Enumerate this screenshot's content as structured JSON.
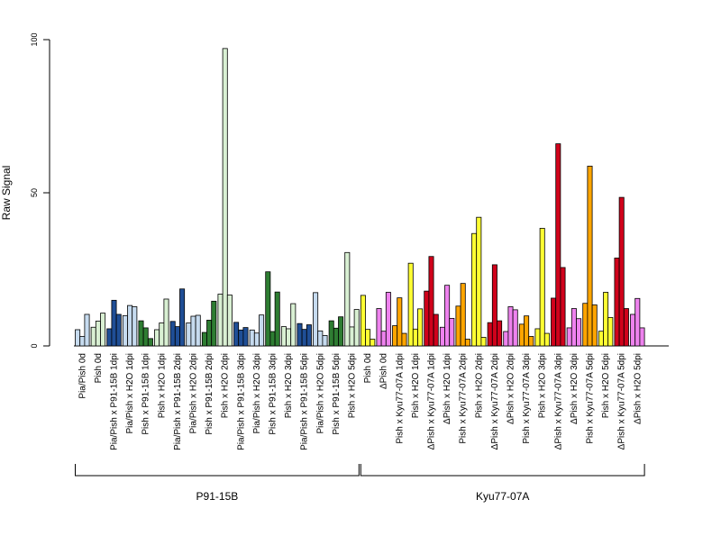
{
  "chart_data": {
    "type": "bar",
    "ylabel": "Raw Signal",
    "yticks": [
      0,
      50,
      100
    ],
    "ylim": [
      0,
      100
    ],
    "grid": false,
    "groups": [
      {
        "label": "P91-15B",
        "categories": [
          {
            "label": "Pia/Pish 0d",
            "color": "#c6dbef",
            "values": [
              5.3,
              3.1,
              10.3
            ]
          },
          {
            "label": "Pish 0d",
            "color": "#d9f0d3",
            "values": [
              6.1,
              8.1,
              10.7
            ]
          },
          {
            "label": "Pia/Pish x P91-15B 1dpi",
            "color": "#1f4e96",
            "values": [
              5.6,
              14.9,
              10.3
            ]
          },
          {
            "label": "Pia/Pish x H2O 1dpi",
            "color": "#c6dbef",
            "values": [
              9.9,
              13.2,
              12.8
            ]
          },
          {
            "label": "Pish x P91-15B 1dpi",
            "color": "#2e7d32",
            "values": [
              8.2,
              5.9,
              2.4
            ]
          },
          {
            "label": "Pish x H2O 1dpi",
            "color": "#d9f0d3",
            "values": [
              5.3,
              7.5,
              15.3
            ]
          },
          {
            "label": "Pia/Pish x P91-15B 2dpi",
            "color": "#1f4e96",
            "values": [
              8.0,
              6.3,
              18.6
            ]
          },
          {
            "label": "Pia/Pish x H2O 2dpi",
            "color": "#c6dbef",
            "values": [
              7.5,
              9.7,
              10.0
            ]
          },
          {
            "label": "Pish x P91-15B 2dpi",
            "color": "#2e7d32",
            "values": [
              4.4,
              8.4,
              14.6
            ]
          },
          {
            "label": "Pish x H2O 2dpi",
            "color": "#d9f0d3",
            "values": [
              16.9,
              97.1,
              16.6
            ]
          },
          {
            "label": "Pia/Pish x P91-15B 3dpi",
            "color": "#1f4e96",
            "values": [
              7.7,
              5.2,
              6.0
            ]
          },
          {
            "label": "Pia/Pish x H2O 3dpi",
            "color": "#c6dbef",
            "values": [
              5.2,
              4.2,
              10.1
            ]
          },
          {
            "label": "Pish x P91-15B 3dpi",
            "color": "#2e7d32",
            "values": [
              24.2,
              4.7,
              17.6
            ]
          },
          {
            "label": "Pish x H2O 3dpi",
            "color": "#d9f0d3",
            "values": [
              6.3,
              5.6,
              13.8
            ]
          },
          {
            "label": "Pia/Pish x P91-15B 5dpi",
            "color": "#1f4e96",
            "values": [
              7.3,
              5.4,
              6.9
            ]
          },
          {
            "label": "Pia/Pish x H2O 5dpi",
            "color": "#c6dbef",
            "values": [
              17.4,
              4.9,
              3.4
            ]
          },
          {
            "label": "Pish x P91-15B 5dpi",
            "color": "#2e7d32",
            "values": [
              8.2,
              5.8,
              9.5
            ]
          },
          {
            "label": "Pish x H2O 5dpi",
            "color": "#d9f0d3",
            "values": [
              30.5,
              6.2,
              11.9
            ]
          }
        ]
      },
      {
        "label": "Kyu77-07A",
        "categories": [
          {
            "label": "Pish 0d",
            "color": "#ffff33",
            "values": [
              16.5,
              5.4,
              2.2
            ]
          },
          {
            "label": "ΔPish 0d",
            "color": "#ee82ee",
            "values": [
              12.2,
              4.8,
              17.5
            ]
          },
          {
            "label": "Pish x Kyu77-07A 1dpi",
            "color": "#ffa500",
            "values": [
              6.6,
              15.7,
              4.1
            ]
          },
          {
            "label": "Pish x H2O 1dpi",
            "color": "#ffff33",
            "values": [
              27.0,
              5.5,
              12.1
            ]
          },
          {
            "label": "ΔPish x Kyu77-07A 1dpi",
            "color": "#d0021b",
            "values": [
              17.9,
              29.2,
              10.3
            ]
          },
          {
            "label": "ΔPish x H2O 1dpi",
            "color": "#ee82ee",
            "values": [
              6.1,
              19.8,
              9.0
            ]
          },
          {
            "label": "Pish x Kyu77-07A 2dpi",
            "color": "#ffa500",
            "values": [
              13.0,
              20.4,
              2.2
            ]
          },
          {
            "label": "Pish x H2O 2dpi",
            "color": "#ffff33",
            "values": [
              36.7,
              42.0,
              2.8
            ]
          },
          {
            "label": "ΔPish x Kyu77-07A 2dpi",
            "color": "#d0021b",
            "values": [
              7.6,
              26.5,
              8.2
            ]
          },
          {
            "label": "ΔPish x H2O 2dpi",
            "color": "#ee82ee",
            "values": [
              4.7,
              12.8,
              11.8
            ]
          },
          {
            "label": "Pish x Kyu77-07A 3dpi",
            "color": "#ffa500",
            "values": [
              7.1,
              9.8,
              3.1
            ]
          },
          {
            "label": "Pish x H2O 3dpi",
            "color": "#ffff33",
            "values": [
              5.6,
              38.4,
              4.1
            ]
          },
          {
            "label": "ΔPish x Kyu77-07A 3dpi",
            "color": "#d0021b",
            "values": [
              15.6,
              66.0,
              25.6
            ]
          },
          {
            "label": "ΔPish x H2O 3dpi",
            "color": "#ee82ee",
            "values": [
              5.9,
              12.2,
              8.9
            ]
          },
          {
            "label": "Pish x Kyu77-07A 5dpi",
            "color": "#ffa500",
            "values": [
              13.9,
              58.7,
              13.4
            ]
          },
          {
            "label": "Pish x H2O 5dpi",
            "color": "#ffff33",
            "values": [
              4.8,
              17.5,
              9.3
            ]
          },
          {
            "label": "ΔPish x Kyu77-07A 5dpi",
            "color": "#d0021b",
            "values": [
              28.7,
              48.5,
              12.2
            ]
          },
          {
            "label": "ΔPish x H2O 5dpi",
            "color": "#ee82ee",
            "values": [
              10.3,
              15.5,
              5.9
            ]
          }
        ]
      }
    ]
  }
}
